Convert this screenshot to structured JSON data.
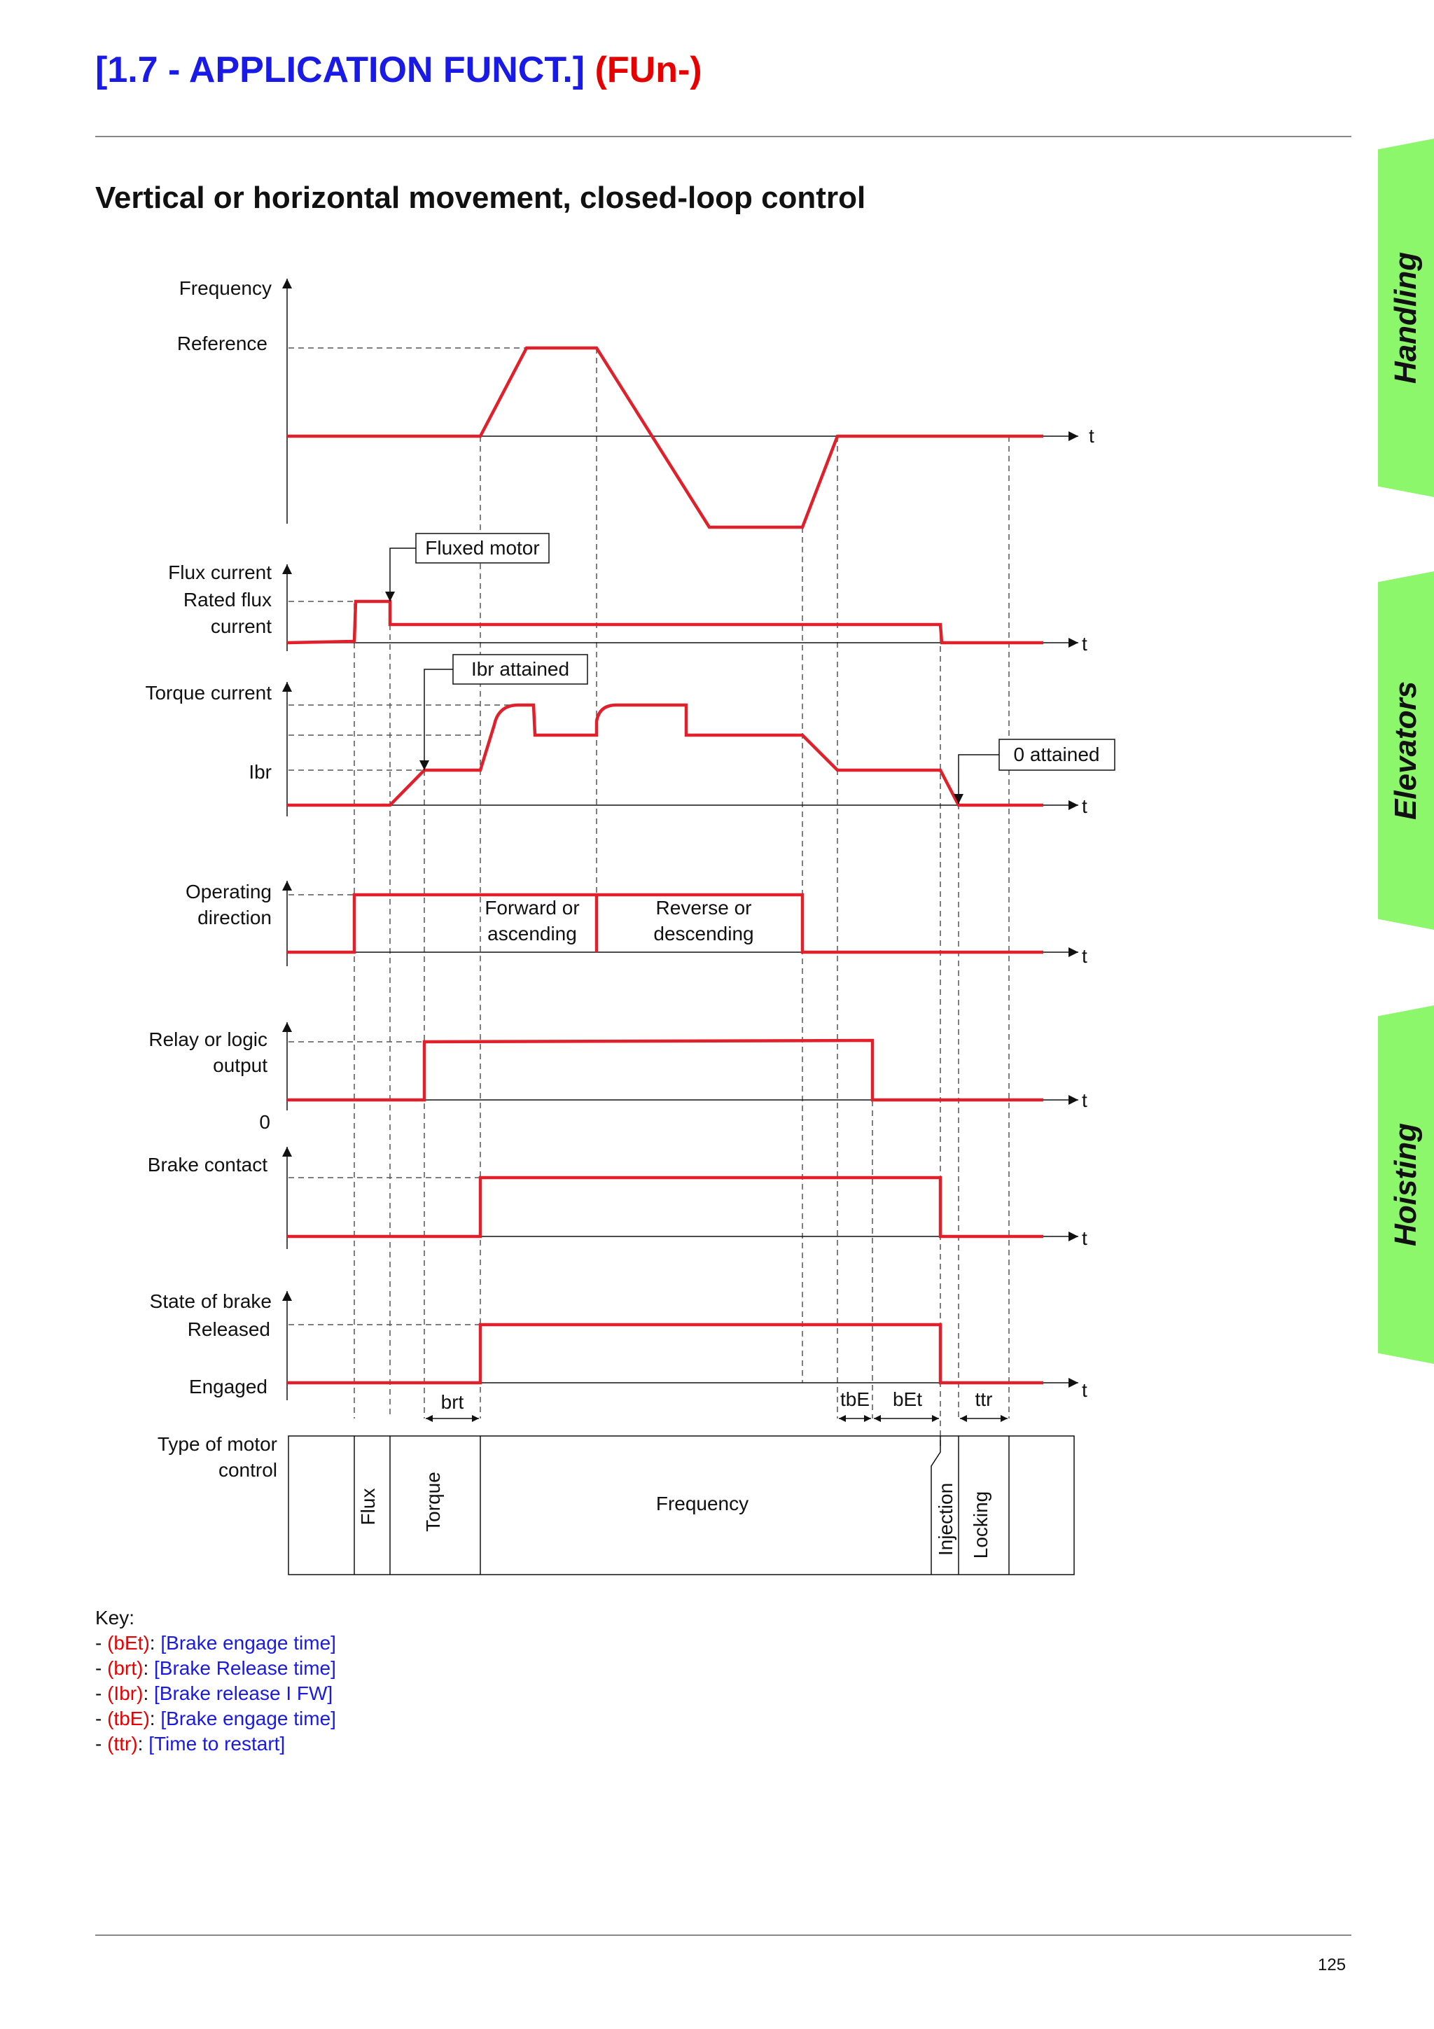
{
  "header": {
    "title": "[1.7 - APPLICATION FUNCT.]",
    "code": "(FUn-)"
  },
  "subtitle": "Vertical or horizontal movement, closed-loop control",
  "side_tabs": [
    "Handling",
    "Elevators",
    "Hoisting"
  ],
  "colors": {
    "title_blue": "#1a1ae6",
    "red": "#e60000",
    "tab_green": "#8cf76a",
    "signal_red": "#e0202a"
  },
  "diagram": {
    "rows": {
      "frequency": [
        "Frequency",
        "Reference"
      ],
      "flux": [
        "Flux current",
        "Rated flux",
        "current"
      ],
      "torque": [
        "Torque current",
        "Ibr"
      ],
      "direction": [
        "Operating",
        "direction"
      ],
      "relay": [
        "Relay or logic",
        "output",
        "0"
      ],
      "brake_contact": [
        "Brake contact"
      ],
      "brake_state": [
        "State of brake",
        "Released",
        "Engaged"
      ],
      "motor_control": [
        "Type of motor",
        "control"
      ]
    },
    "time_axis": "t",
    "callouts": {
      "fluxed": "Fluxed motor",
      "ibr": "Ibr attained",
      "zero": "0 attained"
    },
    "direction_labels": {
      "forward": [
        "Forward or",
        "ascending"
      ],
      "reverse": [
        "Reverse or",
        "descending"
      ]
    },
    "timings": {
      "brt": "brt",
      "tbE": "tbE",
      "bEt": "bEt",
      "ttr": "ttr"
    },
    "control_modes": {
      "flux": "Flux",
      "torque": "Torque",
      "frequency": "Frequency",
      "injection": "Injection",
      "locking": "Locking"
    }
  },
  "key": {
    "title": "Key:",
    "items": [
      {
        "abbr": "(bEt)",
        "full": "[Brake engage time]"
      },
      {
        "abbr": "(brt)",
        "full": "[Brake Release time]"
      },
      {
        "abbr": "(Ibr)",
        "full": "[Brake release I FW]"
      },
      {
        "abbr": "(tbE)",
        "full": "[Brake engage time]"
      },
      {
        "abbr": "(ttr)",
        "full": "[Time to restart]"
      }
    ]
  },
  "page_number": "125"
}
